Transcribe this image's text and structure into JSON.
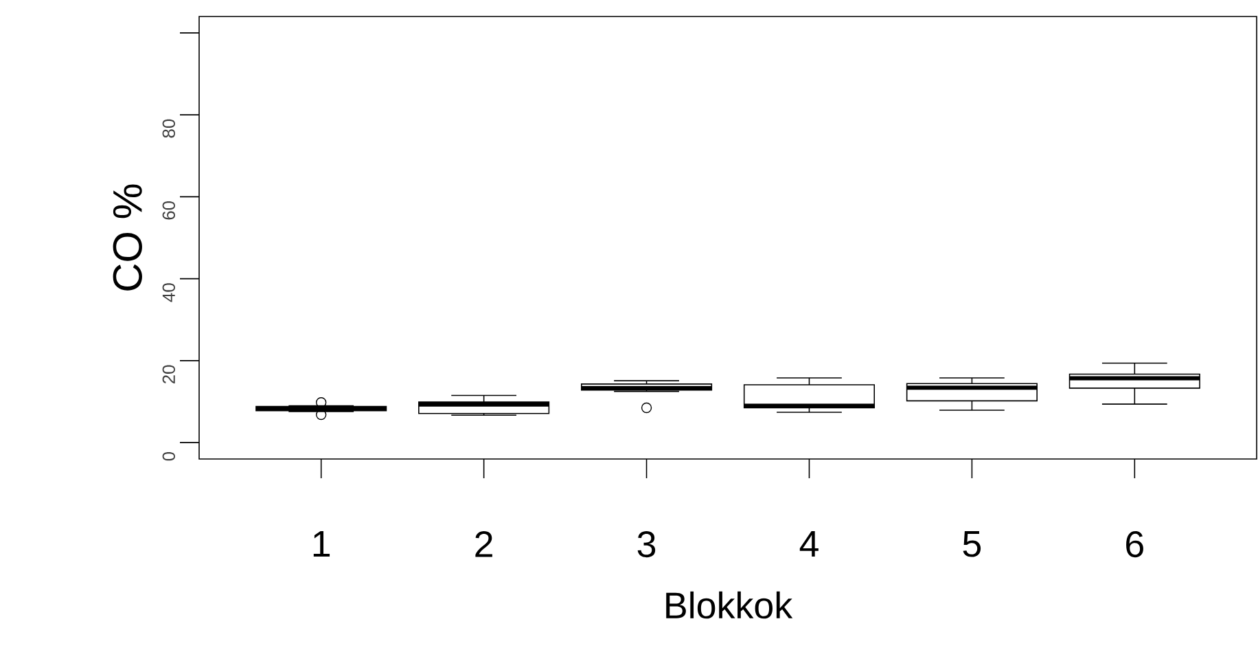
{
  "chart_data": {
    "type": "box",
    "xlabel": "Blokkok",
    "ylabel": "CO %",
    "categories": [
      "1",
      "2",
      "3",
      "4",
      "5",
      "6"
    ],
    "boxes": [
      {
        "low": 7.6,
        "q1": 7.8,
        "median": 8.3,
        "q3": 8.8,
        "high": 9.0,
        "outliers": [
          9.8,
          6.8
        ]
      },
      {
        "low": 6.7,
        "q1": 7.1,
        "median": 9.3,
        "q3": 9.9,
        "high": 11.5
      },
      {
        "low": 12.5,
        "q1": 12.8,
        "median": 13.3,
        "q3": 14.3,
        "high": 15.1,
        "outliers": [
          8.5
        ]
      },
      {
        "low": 7.4,
        "q1": 8.5,
        "median": 9.0,
        "q3": 14.1,
        "high": 15.8
      },
      {
        "low": 7.9,
        "q1": 10.2,
        "median": 13.4,
        "q3": 14.4,
        "high": 15.8
      },
      {
        "low": 9.4,
        "q1": 13.3,
        "median": 15.7,
        "q3": 16.7,
        "high": 19.4
      }
    ],
    "ylim": [
      -4,
      104
    ],
    "yticks": [
      0,
      20,
      40,
      60,
      80,
      {
        "value": 100,
        "label": null
      }
    ],
    "grid": false
  }
}
